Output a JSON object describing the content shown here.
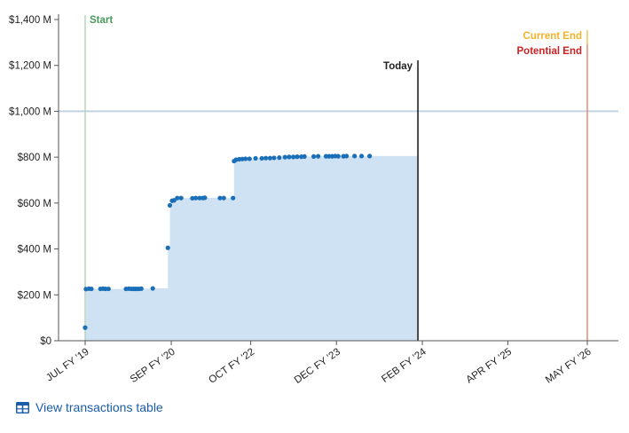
{
  "chart_data": {
    "type": "area",
    "title": "",
    "xlabel": "",
    "ylabel": "",
    "ylim": [
      0,
      1400
    ],
    "yticks": [
      0,
      200,
      400,
      600,
      800,
      1000,
      1200,
      1400
    ],
    "ytick_labels": [
      "$0",
      "$200 M",
      "$400 M",
      "$600 M",
      "$800 M",
      "$1,000 M",
      "$1,200 M",
      "$1,400 M"
    ],
    "x_domain": [
      "2019-07-01",
      "2026-05-01"
    ],
    "xticks": [
      {
        "date": "2019-07-01",
        "label": "JUL FY '19"
      },
      {
        "date": "2020-09-01",
        "label": "SEP FY '20"
      },
      {
        "date": "2021-10-01",
        "label": "OCT FY '22"
      },
      {
        "date": "2022-12-01",
        "label": "DEC FY '23"
      },
      {
        "date": "2024-02-01",
        "label": "FEB FY '24"
      },
      {
        "date": "2025-04-01",
        "label": "APR FY '25"
      },
      {
        "date": "2026-05-01",
        "label": "MAY FY '26"
      }
    ],
    "reference_line_value": 1000,
    "markers": [
      {
        "label": "Start",
        "date": "2019-07-01",
        "color": "#4a9a5c"
      },
      {
        "label": "Today",
        "date": "2024-01-10",
        "color": "#222222"
      },
      {
        "label": "Current End",
        "date": "2026-05-01",
        "color": "#f5b32a"
      },
      {
        "label": "Potential End",
        "date": "2026-05-01",
        "color": "#cc2222"
      }
    ],
    "area_color": "#cfe2f3",
    "point_color": "#1a6fb8",
    "series": [
      {
        "points": [
          [
            "2019-07-01",
            57
          ],
          [
            "2019-07-05",
            225
          ],
          [
            "2019-07-20",
            227
          ],
          [
            "2019-08-01",
            226
          ],
          [
            "2019-09-15",
            226
          ],
          [
            "2019-09-28",
            227
          ],
          [
            "2019-10-10",
            226
          ],
          [
            "2019-10-25",
            226
          ],
          [
            "2020-01-20",
            226
          ],
          [
            "2020-02-03",
            227
          ],
          [
            "2020-02-15",
            226
          ],
          [
            "2020-02-25",
            226
          ],
          [
            "2020-03-05",
            226
          ],
          [
            "2020-03-15",
            226
          ],
          [
            "2020-03-25",
            226
          ],
          [
            "2020-04-05",
            227
          ],
          [
            "2020-06-01",
            228
          ],
          [
            "2020-08-15",
            405
          ],
          [
            "2020-08-25",
            590
          ],
          [
            "2020-09-05",
            610
          ],
          [
            "2020-09-15",
            612
          ],
          [
            "2020-10-01",
            622
          ],
          [
            "2020-10-20",
            622
          ],
          [
            "2020-12-15",
            621
          ],
          [
            "2021-01-01",
            622
          ],
          [
            "2021-01-20",
            622
          ],
          [
            "2021-02-05",
            622
          ],
          [
            "2021-02-15",
            623
          ],
          [
            "2021-05-01",
            622
          ],
          [
            "2021-05-20",
            622
          ],
          [
            "2021-07-05",
            622
          ],
          [
            "2021-07-10",
            783
          ],
          [
            "2021-07-20",
            789
          ],
          [
            "2021-08-05",
            791
          ],
          [
            "2021-08-20",
            792
          ],
          [
            "2021-09-05",
            793
          ],
          [
            "2021-09-25",
            793
          ],
          [
            "2021-10-25",
            795
          ],
          [
            "2021-11-25",
            795
          ],
          [
            "2021-12-15",
            796
          ],
          [
            "2022-01-05",
            796
          ],
          [
            "2022-01-25",
            797
          ],
          [
            "2022-02-20",
            798
          ],
          [
            "2022-03-20",
            800
          ],
          [
            "2022-04-10",
            801
          ],
          [
            "2022-05-01",
            801
          ],
          [
            "2022-05-20",
            802
          ],
          [
            "2022-06-10",
            802
          ],
          [
            "2022-06-25",
            803
          ],
          [
            "2022-08-10",
            803
          ],
          [
            "2022-09-01",
            804
          ],
          [
            "2022-10-10",
            804
          ],
          [
            "2022-10-25",
            804
          ],
          [
            "2022-11-10",
            804
          ],
          [
            "2022-11-25",
            805
          ],
          [
            "2022-12-10",
            804
          ],
          [
            "2023-01-05",
            804
          ],
          [
            "2023-01-20",
            805
          ],
          [
            "2023-03-01",
            805
          ],
          [
            "2023-04-05",
            805
          ],
          [
            "2023-05-15",
            805
          ]
        ]
      }
    ]
  },
  "footer": {
    "table_link_label": "View transactions table",
    "table_icon": "table-icon"
  }
}
